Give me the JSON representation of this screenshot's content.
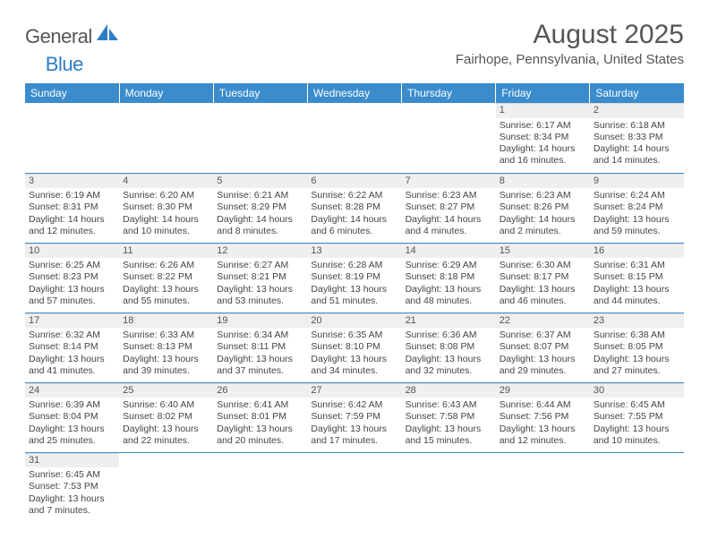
{
  "logo": {
    "text1": "General",
    "text2": "Blue",
    "shape_color": "#2e7cc4"
  },
  "title": "August 2025",
  "location": "Fairhope, Pennsylvania, United States",
  "colors": {
    "header_bg": "#3b8ccc",
    "header_fg": "#ffffff",
    "cell_border": "#3b8ccc",
    "daynum_bg": "#efefef",
    "text": "#444444"
  },
  "day_headers": [
    "Sunday",
    "Monday",
    "Tuesday",
    "Wednesday",
    "Thursday",
    "Friday",
    "Saturday"
  ],
  "weeks": [
    [
      null,
      null,
      null,
      null,
      null,
      {
        "n": "1",
        "sr": "Sunrise: 6:17 AM",
        "ss": "Sunset: 8:34 PM",
        "dl": "Daylight: 14 hours and 16 minutes."
      },
      {
        "n": "2",
        "sr": "Sunrise: 6:18 AM",
        "ss": "Sunset: 8:33 PM",
        "dl": "Daylight: 14 hours and 14 minutes."
      }
    ],
    [
      {
        "n": "3",
        "sr": "Sunrise: 6:19 AM",
        "ss": "Sunset: 8:31 PM",
        "dl": "Daylight: 14 hours and 12 minutes."
      },
      {
        "n": "4",
        "sr": "Sunrise: 6:20 AM",
        "ss": "Sunset: 8:30 PM",
        "dl": "Daylight: 14 hours and 10 minutes."
      },
      {
        "n": "5",
        "sr": "Sunrise: 6:21 AM",
        "ss": "Sunset: 8:29 PM",
        "dl": "Daylight: 14 hours and 8 minutes."
      },
      {
        "n": "6",
        "sr": "Sunrise: 6:22 AM",
        "ss": "Sunset: 8:28 PM",
        "dl": "Daylight: 14 hours and 6 minutes."
      },
      {
        "n": "7",
        "sr": "Sunrise: 6:23 AM",
        "ss": "Sunset: 8:27 PM",
        "dl": "Daylight: 14 hours and 4 minutes."
      },
      {
        "n": "8",
        "sr": "Sunrise: 6:23 AM",
        "ss": "Sunset: 8:26 PM",
        "dl": "Daylight: 14 hours and 2 minutes."
      },
      {
        "n": "9",
        "sr": "Sunrise: 6:24 AM",
        "ss": "Sunset: 8:24 PM",
        "dl": "Daylight: 13 hours and 59 minutes."
      }
    ],
    [
      {
        "n": "10",
        "sr": "Sunrise: 6:25 AM",
        "ss": "Sunset: 8:23 PM",
        "dl": "Daylight: 13 hours and 57 minutes."
      },
      {
        "n": "11",
        "sr": "Sunrise: 6:26 AM",
        "ss": "Sunset: 8:22 PM",
        "dl": "Daylight: 13 hours and 55 minutes."
      },
      {
        "n": "12",
        "sr": "Sunrise: 6:27 AM",
        "ss": "Sunset: 8:21 PM",
        "dl": "Daylight: 13 hours and 53 minutes."
      },
      {
        "n": "13",
        "sr": "Sunrise: 6:28 AM",
        "ss": "Sunset: 8:19 PM",
        "dl": "Daylight: 13 hours and 51 minutes."
      },
      {
        "n": "14",
        "sr": "Sunrise: 6:29 AM",
        "ss": "Sunset: 8:18 PM",
        "dl": "Daylight: 13 hours and 48 minutes."
      },
      {
        "n": "15",
        "sr": "Sunrise: 6:30 AM",
        "ss": "Sunset: 8:17 PM",
        "dl": "Daylight: 13 hours and 46 minutes."
      },
      {
        "n": "16",
        "sr": "Sunrise: 6:31 AM",
        "ss": "Sunset: 8:15 PM",
        "dl": "Daylight: 13 hours and 44 minutes."
      }
    ],
    [
      {
        "n": "17",
        "sr": "Sunrise: 6:32 AM",
        "ss": "Sunset: 8:14 PM",
        "dl": "Daylight: 13 hours and 41 minutes."
      },
      {
        "n": "18",
        "sr": "Sunrise: 6:33 AM",
        "ss": "Sunset: 8:13 PM",
        "dl": "Daylight: 13 hours and 39 minutes."
      },
      {
        "n": "19",
        "sr": "Sunrise: 6:34 AM",
        "ss": "Sunset: 8:11 PM",
        "dl": "Daylight: 13 hours and 37 minutes."
      },
      {
        "n": "20",
        "sr": "Sunrise: 6:35 AM",
        "ss": "Sunset: 8:10 PM",
        "dl": "Daylight: 13 hours and 34 minutes."
      },
      {
        "n": "21",
        "sr": "Sunrise: 6:36 AM",
        "ss": "Sunset: 8:08 PM",
        "dl": "Daylight: 13 hours and 32 minutes."
      },
      {
        "n": "22",
        "sr": "Sunrise: 6:37 AM",
        "ss": "Sunset: 8:07 PM",
        "dl": "Daylight: 13 hours and 29 minutes."
      },
      {
        "n": "23",
        "sr": "Sunrise: 6:38 AM",
        "ss": "Sunset: 8:05 PM",
        "dl": "Daylight: 13 hours and 27 minutes."
      }
    ],
    [
      {
        "n": "24",
        "sr": "Sunrise: 6:39 AM",
        "ss": "Sunset: 8:04 PM",
        "dl": "Daylight: 13 hours and 25 minutes."
      },
      {
        "n": "25",
        "sr": "Sunrise: 6:40 AM",
        "ss": "Sunset: 8:02 PM",
        "dl": "Daylight: 13 hours and 22 minutes."
      },
      {
        "n": "26",
        "sr": "Sunrise: 6:41 AM",
        "ss": "Sunset: 8:01 PM",
        "dl": "Daylight: 13 hours and 20 minutes."
      },
      {
        "n": "27",
        "sr": "Sunrise: 6:42 AM",
        "ss": "Sunset: 7:59 PM",
        "dl": "Daylight: 13 hours and 17 minutes."
      },
      {
        "n": "28",
        "sr": "Sunrise: 6:43 AM",
        "ss": "Sunset: 7:58 PM",
        "dl": "Daylight: 13 hours and 15 minutes."
      },
      {
        "n": "29",
        "sr": "Sunrise: 6:44 AM",
        "ss": "Sunset: 7:56 PM",
        "dl": "Daylight: 13 hours and 12 minutes."
      },
      {
        "n": "30",
        "sr": "Sunrise: 6:45 AM",
        "ss": "Sunset: 7:55 PM",
        "dl": "Daylight: 13 hours and 10 minutes."
      }
    ],
    [
      {
        "n": "31",
        "sr": "Sunrise: 6:45 AM",
        "ss": "Sunset: 7:53 PM",
        "dl": "Daylight: 13 hours and 7 minutes."
      },
      null,
      null,
      null,
      null,
      null,
      null
    ]
  ]
}
